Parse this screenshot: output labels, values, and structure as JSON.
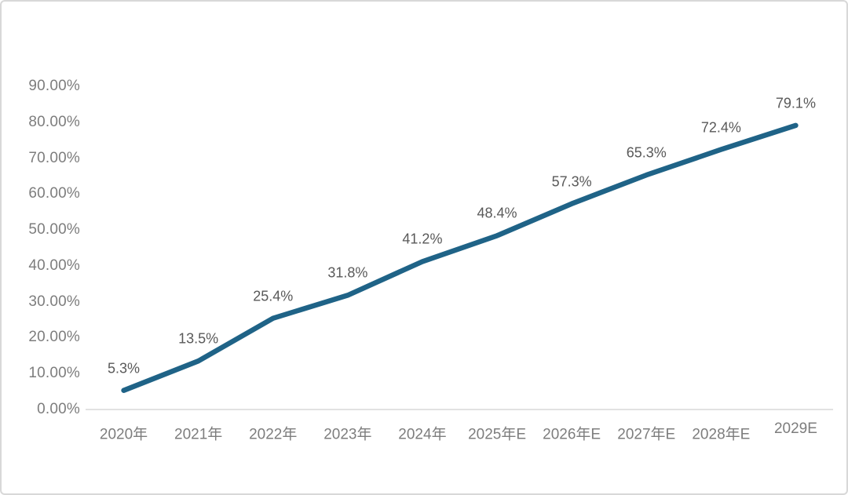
{
  "chart_data": {
    "type": "line",
    "title": "",
    "categories": [
      "2020年",
      "2021年",
      "2022年",
      "2023年",
      "2024年",
      "2025年E",
      "2026年E",
      "2027年E",
      "2028年E",
      "2029E"
    ],
    "series": [
      {
        "name": "series-1",
        "values": [
          5.3,
          13.5,
          25.4,
          31.8,
          41.2,
          48.4,
          57.3,
          65.3,
          72.4,
          79.1
        ]
      }
    ],
    "data_labels": [
      "5.3%",
      "13.5%",
      "25.4%",
      "31.8%",
      "41.2%",
      "48.4%",
      "57.3%",
      "65.3%",
      "72.4%",
      "79.1%"
    ],
    "y_ticks": [
      "0.00%",
      "10.00%",
      "20.00%",
      "30.00%",
      "40.00%",
      "50.00%",
      "60.00%",
      "70.00%",
      "80.00%",
      "90.00%"
    ],
    "ylim": [
      0,
      90
    ],
    "xlabel": "",
    "ylabel": "",
    "grid": "off",
    "legend": "none",
    "line_color": "#1f6387",
    "axis_line_color": "#d9d9d9",
    "axis_label_color": "#7d7d7d",
    "data_label_color": "#595959",
    "frame_border_color": "#d8d8d8",
    "background_color": "#ffffff"
  }
}
